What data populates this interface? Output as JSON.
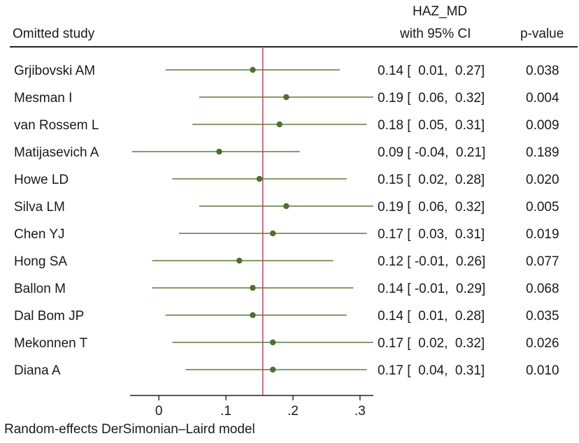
{
  "chart_data": {
    "type": "forest",
    "header": {
      "study_label": "Omitted study",
      "measure_line1": "HAZ_MD",
      "measure_line2": "with 95% CI",
      "pvalue_label": "p-value"
    },
    "studies": [
      {
        "name": "Grjibovski AM",
        "est": 0.14,
        "lo": 0.01,
        "hi": 0.27,
        "ci_text": "0.14 [  0.01,  0.27]",
        "p": "0.038"
      },
      {
        "name": "Mesman I",
        "est": 0.19,
        "lo": 0.06,
        "hi": 0.32,
        "ci_text": "0.19 [  0.06,  0.32]",
        "p": "0.004"
      },
      {
        "name": "van Rossem L",
        "est": 0.18,
        "lo": 0.05,
        "hi": 0.31,
        "ci_text": "0.18 [  0.05,  0.31]",
        "p": "0.009"
      },
      {
        "name": "Matijasevich A",
        "est": 0.09,
        "lo": -0.04,
        "hi": 0.21,
        "ci_text": "0.09 [ -0.04,  0.21]",
        "p": "0.189"
      },
      {
        "name": "Howe LD",
        "est": 0.15,
        "lo": 0.02,
        "hi": 0.28,
        "ci_text": "0.15 [  0.02,  0.28]",
        "p": "0.020"
      },
      {
        "name": "Silva LM",
        "est": 0.19,
        "lo": 0.06,
        "hi": 0.32,
        "ci_text": "0.19 [  0.06,  0.32]",
        "p": "0.005"
      },
      {
        "name": "Chen YJ",
        "est": 0.17,
        "lo": 0.03,
        "hi": 0.31,
        "ci_text": "0.17 [  0.03,  0.31]",
        "p": "0.019"
      },
      {
        "name": "Hong SA",
        "est": 0.12,
        "lo": -0.01,
        "hi": 0.26,
        "ci_text": "0.12 [ -0.01,  0.26]",
        "p": "0.077"
      },
      {
        "name": "Ballon M",
        "est": 0.14,
        "lo": -0.01,
        "hi": 0.29,
        "ci_text": "0.14 [ -0.01,  0.29]",
        "p": "0.068"
      },
      {
        "name": "Dal Bom JP",
        "est": 0.14,
        "lo": 0.01,
        "hi": 0.28,
        "ci_text": "0.14 [  0.01,  0.28]",
        "p": "0.035"
      },
      {
        "name": "Mekonnen T",
        "est": 0.17,
        "lo": 0.02,
        "hi": 0.32,
        "ci_text": "0.17 [  0.02,  0.32]",
        "p": "0.026"
      },
      {
        "name": "Diana A",
        "est": 0.17,
        "lo": 0.04,
        "hi": 0.31,
        "ci_text": "0.17 [  0.04,  0.31]",
        "p": "0.010"
      }
    ],
    "overall_effect": 0.155,
    "xlim": [
      -0.043,
      0.32
    ],
    "xticks": [
      {
        "value": 0,
        "label": "0"
      },
      {
        "value": 0.1,
        "label": ".1"
      },
      {
        "value": 0.2,
        "label": ".2"
      },
      {
        "value": 0.3,
        "label": ".3"
      }
    ],
    "footer": "Random-effects DerSimonian–Laird model",
    "colors": {
      "ci": "#5b7a3a",
      "point": "#4f6e30",
      "reference": "#c0506e",
      "axis": "#222222"
    }
  }
}
